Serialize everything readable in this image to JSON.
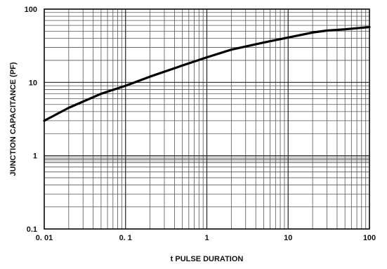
{
  "chart_data": {
    "type": "line",
    "xlabel": "t PULSE DURATION",
    "ylabel": "JUNCTION CAPACITANCE (PF)",
    "x_scale": "log",
    "y_scale": "log",
    "xlim": [
      0.01,
      100
    ],
    "ylim": [
      0.1,
      100
    ],
    "grid": true,
    "x_tick_labels": [
      "0. 01",
      "0. 1",
      "1",
      "10",
      "100"
    ],
    "y_tick_labels": [
      "0.1",
      "1",
      "10",
      "100"
    ],
    "x_tick_values": [
      0.01,
      0.1,
      1,
      10,
      100
    ],
    "y_tick_values": [
      0.1,
      1,
      10,
      100
    ],
    "colors": {
      "line": "#000000",
      "grid": "#555555",
      "highlight_band": "#d4d4d4"
    },
    "highlight_band_y": [
      0.8,
      1.0
    ],
    "series": [
      {
        "x": [
          0.01,
          0.02,
          0.05,
          0.1,
          0.2,
          0.5,
          1,
          2,
          5,
          10,
          20,
          30,
          50,
          100
        ],
        "y": [
          3.0,
          4.5,
          7.0,
          9.0,
          12.0,
          17.0,
          22.0,
          28.0,
          35.0,
          41.0,
          48.0,
          51.0,
          53.0,
          57.0
        ]
      }
    ]
  }
}
